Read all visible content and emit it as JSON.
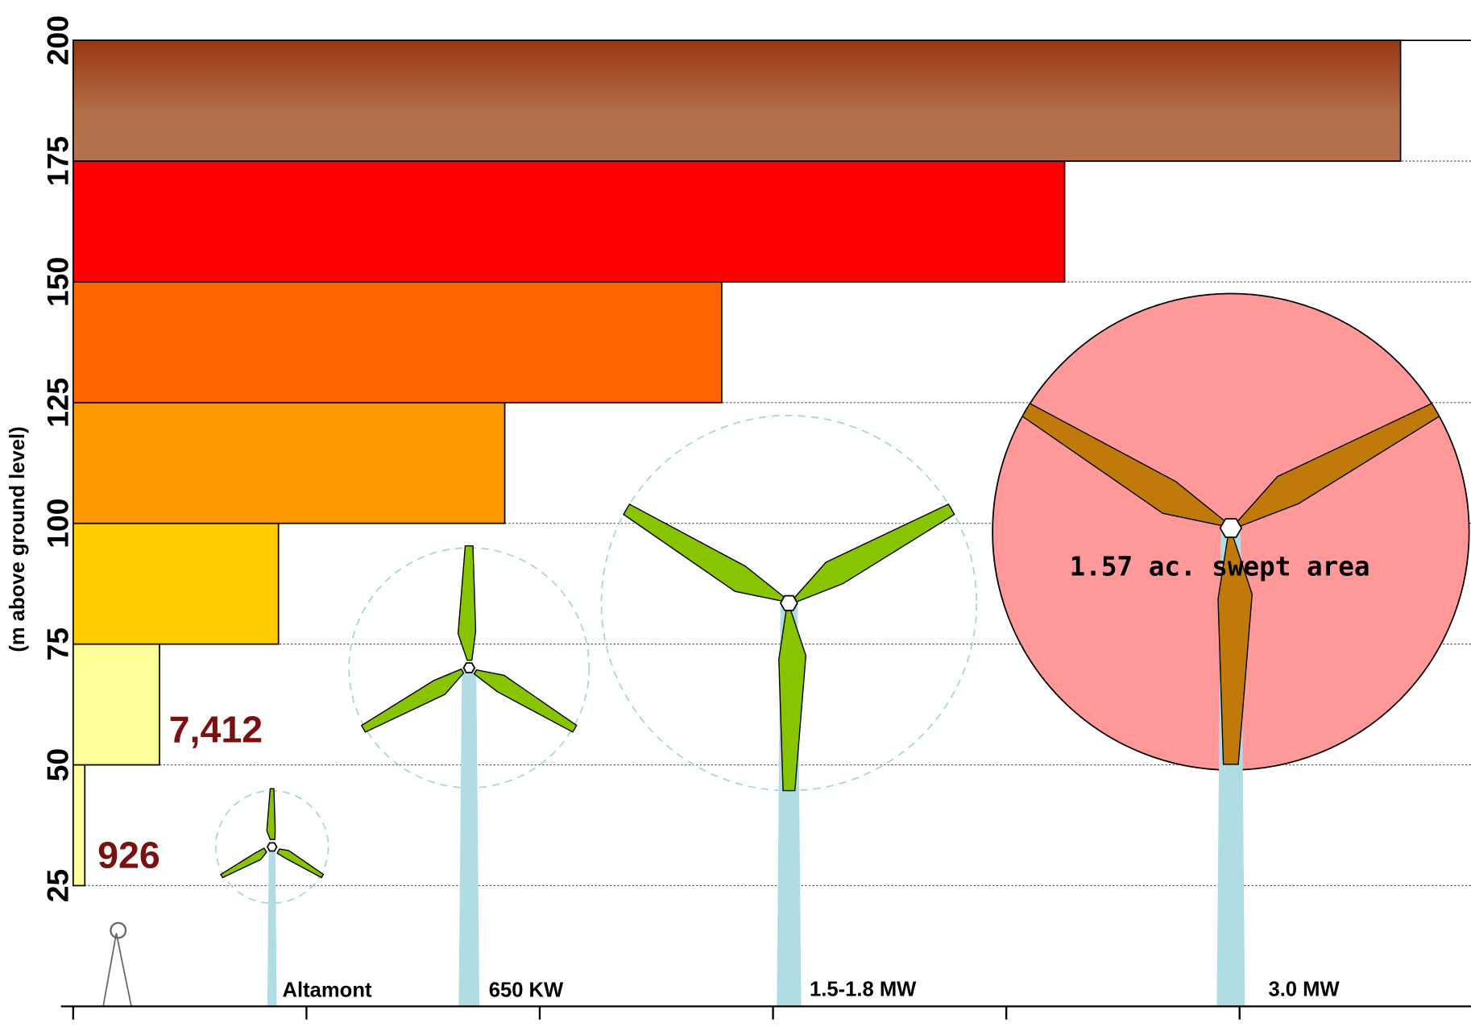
{
  "chart_data": {
    "type": "bar",
    "orientation": "horizontal",
    "y_label": "(m above ground level)",
    "ylim": [
      0,
      200
    ],
    "yticks": [
      25,
      50,
      75,
      100,
      125,
      150,
      175,
      200
    ],
    "xlim": [
      0,
      6
    ],
    "xticks": [
      0,
      1,
      2,
      3,
      4,
      5,
      6
    ],
    "values": [
      0.05,
      0.37,
      0.88,
      1.85,
      2.78,
      4.25,
      5.69
    ],
    "colors": [
      "#ffff99",
      "#ffff99",
      "#ffcc00",
      "#ff9900",
      "#ff6600",
      "#ff0000",
      "#a9552f"
    ],
    "grid": true,
    "annotations": [
      "926",
      "7,412",
      "1.57 ac. swept area",
      "Altamont",
      "650 KW",
      "1.5-1.8 MW",
      "3.0 MW"
    ]
  }
}
